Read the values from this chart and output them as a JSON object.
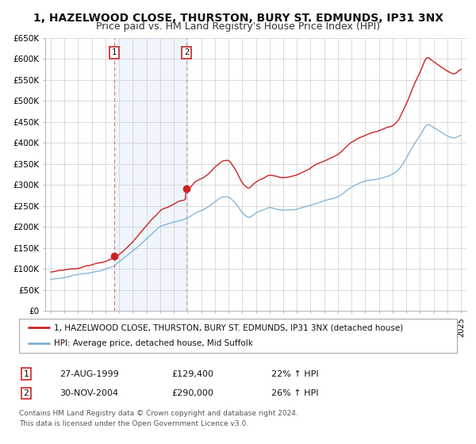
{
  "title": "1, HAZELWOOD CLOSE, THURSTON, BURY ST. EDMUNDS, IP31 3NX",
  "subtitle": "Price paid vs. HM Land Registry's House Price Index (HPI)",
  "legend_line1": "1, HAZELWOOD CLOSE, THURSTON, BURY ST. EDMUNDS, IP31 3NX (detached house)",
  "legend_line2": "HPI: Average price, detached house, Mid Suffolk",
  "table_row1_num": "1",
  "table_row1_date": "27-AUG-1999",
  "table_row1_price": "£129,400",
  "table_row1_hpi": "22% ↑ HPI",
  "table_row2_num": "2",
  "table_row2_date": "30-NOV-2004",
  "table_row2_price": "£290,000",
  "table_row2_hpi": "26% ↑ HPI",
  "footer1": "Contains HM Land Registry data © Crown copyright and database right 2024.",
  "footer2": "This data is licensed under the Open Government Licence v3.0.",
  "sale1_year": 1999.65,
  "sale1_price": 129400,
  "sale2_year": 2004.92,
  "sale2_price": 290000,
  "red_color": "#cc2222",
  "blue_color": "#7bafd4",
  "bg_shade_color": "#ddeeff",
  "grid_color": "#cccccc",
  "plot_bg": "#ffffff",
  "fig_bg": "#ffffff",
  "title_fontsize": 10,
  "subtitle_fontsize": 9,
  "ylim": [
    0,
    650000
  ],
  "xlim_start": 1994.6,
  "xlim_end": 2025.4,
  "yticks": [
    0,
    50000,
    100000,
    150000,
    200000,
    250000,
    300000,
    350000,
    400000,
    450000,
    500000,
    550000,
    600000,
    650000
  ],
  "ytick_labels": [
    "£0",
    "£50K",
    "£100K",
    "£150K",
    "£200K",
    "£250K",
    "£300K",
    "£350K",
    "£400K",
    "£450K",
    "£500K",
    "£550K",
    "£600K",
    "£650K"
  ]
}
